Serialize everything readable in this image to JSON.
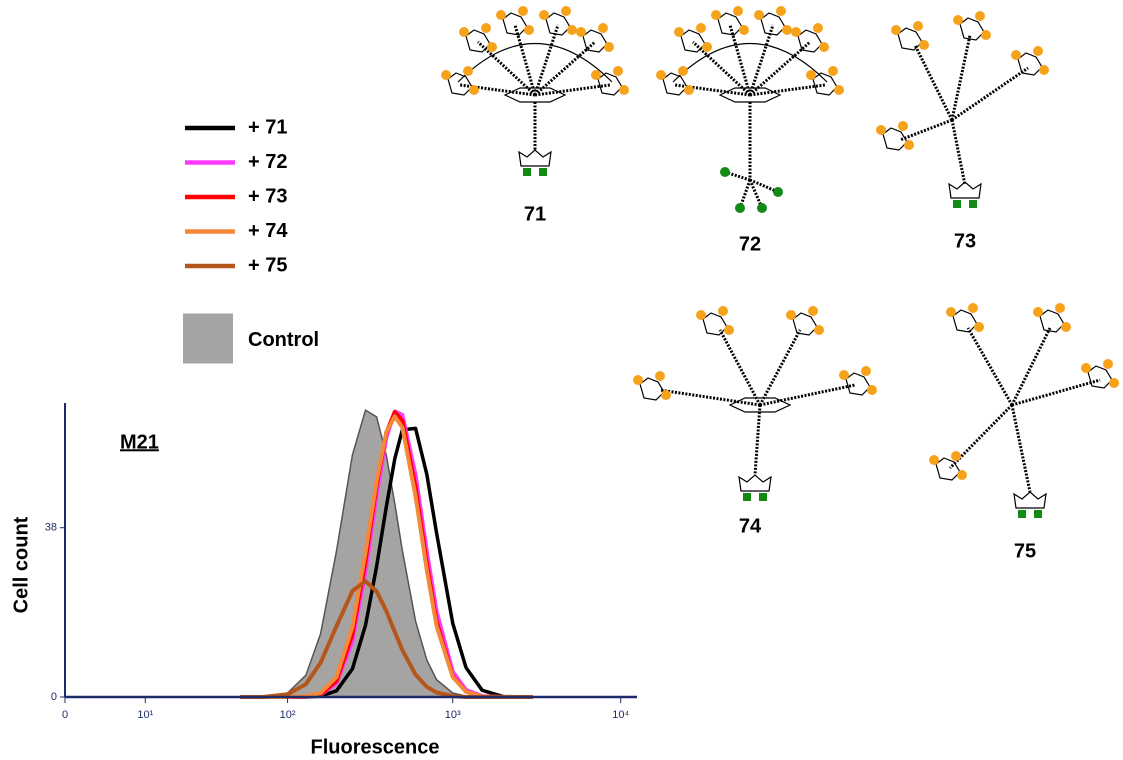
{
  "chart_data": {
    "type": "histogram-overlay",
    "annotation": "M21",
    "xlabel": "Fluorescence",
    "ylabel": "Cell count",
    "xscale": "symlog",
    "xlim": [
      0,
      12500
    ],
    "xticks": [
      {
        "value": 0,
        "label": "0"
      },
      {
        "value": 10,
        "label": "10¹"
      },
      {
        "value": 100,
        "label": "10²"
      },
      {
        "value": 1000,
        "label": "10³"
      },
      {
        "value": 10000,
        "label": "10⁴"
      }
    ],
    "ylim": [
      0,
      66
    ],
    "yticks": [
      0,
      38
    ],
    "x": [
      50,
      70,
      100,
      130,
      160,
      200,
      250,
      300,
      350,
      400,
      450,
      500,
      600,
      700,
      800,
      1000,
      1200,
      1500,
      2000,
      3000
    ],
    "series": [
      {
        "name": "+ 71",
        "color": "#000000",
        "values": [
          0,
          0,
          0,
          0,
          0.2,
          1.4,
          6.3,
          16.1,
          29.3,
          42.7,
          53.5,
          60.0,
          60.3,
          50.0,
          36.9,
          16.6,
          6.6,
          1.5,
          0.1,
          0
        ]
      },
      {
        "name": "+ 72",
        "color": "#ff3bff",
        "values": [
          0,
          0,
          0,
          0.1,
          0.5,
          3.1,
          12.5,
          28.2,
          45.3,
          58.2,
          64.1,
          63.3,
          49.8,
          32.7,
          19.3,
          5.7,
          1.6,
          0.2,
          0,
          0
        ]
      },
      {
        "name": "+ 73",
        "color": "#ff0000",
        "values": [
          0,
          0,
          0,
          0.1,
          0.6,
          3.6,
          14.0,
          30.5,
          47.5,
          59.3,
          64.0,
          62.0,
          47.0,
          30.0,
          17.0,
          4.7,
          1.2,
          0.1,
          0,
          0
        ]
      },
      {
        "name": "+ 74",
        "color": "#f4893a",
        "values": [
          0,
          0,
          0,
          0.2,
          0.9,
          4.5,
          15.8,
          32.5,
          48.5,
          59.5,
          63.0,
          60.5,
          45.0,
          28.5,
          16.0,
          4.5,
          1.2,
          0.1,
          0,
          0
        ]
      },
      {
        "name": "+ 75",
        "color": "#b5561a",
        "values": [
          0,
          0,
          0.6,
          2.9,
          7.7,
          15.9,
          23.8,
          26.0,
          23.7,
          19.3,
          14.6,
          10.5,
          5.0,
          2.3,
          1.0,
          0.2,
          0,
          0,
          0,
          0
        ]
      },
      {
        "name": "Control",
        "color": "#a6a3a3",
        "filled": true,
        "values": [
          0,
          0,
          0.9,
          4.9,
          14.2,
          32.8,
          54.3,
          64.4,
          62.9,
          54.3,
          43.4,
          32.8,
          17.0,
          8.3,
          3.9,
          0.9,
          0.2,
          0,
          0,
          0
        ]
      }
    ]
  },
  "structures": [
    {
      "label": "71"
    },
    {
      "label": "72"
    },
    {
      "label": "73"
    },
    {
      "label": "74"
    },
    {
      "label": "75"
    }
  ]
}
